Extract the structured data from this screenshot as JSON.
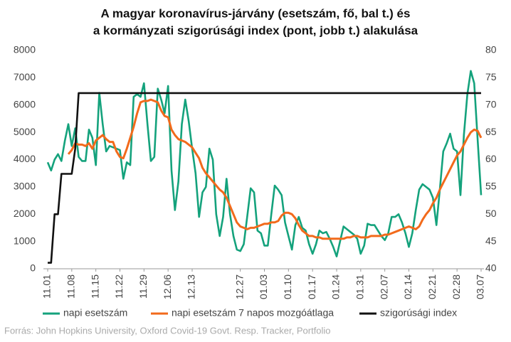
{
  "chart_data": {
    "type": "line",
    "title": [
      "A magyar koronavírus-járvány (esetszám, fő, bal t.) és",
      "a kormányzati szigorúsági index (pont, jobb t.) alakulása"
    ],
    "source": "Forrás: John Hopkins University, Oxford Covid-19 Govt. Resp. Tracker, Portfolio",
    "categories": [
      "11.01",
      null,
      null,
      null,
      null,
      null,
      null,
      "11.08",
      null,
      null,
      null,
      null,
      null,
      null,
      "11.15",
      null,
      null,
      null,
      null,
      null,
      null,
      "11.22",
      null,
      null,
      null,
      null,
      null,
      null,
      "11.29",
      null,
      null,
      null,
      null,
      null,
      null,
      "12.06",
      null,
      null,
      null,
      null,
      null,
      null,
      "12.13",
      null,
      null,
      null,
      null,
      null,
      null,
      null,
      null,
      null,
      null,
      null,
      null,
      null,
      "12.27",
      null,
      null,
      null,
      null,
      null,
      null,
      "01.03",
      null,
      null,
      null,
      null,
      null,
      null,
      "01.10",
      null,
      null,
      null,
      null,
      null,
      null,
      "01.17",
      null,
      null,
      null,
      null,
      null,
      null,
      "01.24",
      null,
      null,
      null,
      null,
      null,
      null,
      "01.31",
      null,
      null,
      null,
      null,
      null,
      null,
      "02.07",
      null,
      null,
      null,
      null,
      null,
      null,
      "02.14",
      null,
      null,
      null,
      null,
      null,
      null,
      "02.21",
      null,
      null,
      null,
      null,
      null,
      null,
      "02.28",
      null,
      null,
      null,
      null,
      null,
      null,
      "03.07"
    ],
    "series": [
      {
        "name": "napi esetszám",
        "color": "#14a27c",
        "values": [
          3900,
          3600,
          4000,
          4200,
          3950,
          4700,
          5300,
          4500,
          5150,
          4100,
          3950,
          3950,
          5100,
          4800,
          3800,
          6450,
          5300,
          4300,
          4500,
          4450,
          4400,
          4350,
          3300,
          3900,
          3800,
          6300,
          6400,
          6300,
          6800,
          5300,
          3950,
          4100,
          6600,
          6200,
          5700,
          6700,
          3600,
          2150,
          3200,
          5300,
          6200,
          5400,
          4400,
          3500,
          1900,
          2800,
          3000,
          4400,
          4000,
          2000,
          1200,
          1900,
          3300,
          2000,
          1200,
          700,
          650,
          900,
          1900,
          2950,
          2800,
          1400,
          1300,
          850,
          850,
          2000,
          3050,
          2900,
          2700,
          1700,
          1200,
          700,
          1600,
          1900,
          1500,
          1400,
          900,
          550,
          900,
          1400,
          1300,
          1350,
          1100,
          800,
          450,
          1000,
          1550,
          1450,
          1350,
          1250,
          1100,
          550,
          850,
          1650,
          1600,
          1600,
          1400,
          1200,
          1050,
          1300,
          1900,
          1900,
          2000,
          1700,
          1300,
          800,
          1300,
          2150,
          2900,
          3100,
          3000,
          2900,
          2600,
          1600,
          2900,
          4300,
          4600,
          4950,
          4400,
          4300,
          2700,
          4900,
          6400,
          7250,
          6800,
          4700,
          2700
        ]
      },
      {
        "name": "napi esetszám 7 napos mozgóátlaga",
        "color": "#f26a1b",
        "values": [
          null,
          null,
          null,
          null,
          null,
          null,
          4200,
          4350,
          4600,
          4550,
          4550,
          4500,
          4600,
          4400,
          4700,
          4800,
          4900,
          4750,
          4650,
          4650,
          4300,
          4100,
          4050,
          4400,
          4800,
          5200,
          5700,
          6100,
          6150,
          6150,
          6200,
          6150,
          6100,
          5800,
          5600,
          5550,
          5100,
          4900,
          4750,
          4700,
          4650,
          4550,
          4450,
          4250,
          4050,
          3700,
          3500,
          3350,
          3200,
          3050,
          2900,
          2800,
          2600,
          2300,
          2000,
          1700,
          1550,
          1500,
          1450,
          1500,
          1500,
          1550,
          1600,
          1650,
          1650,
          1700,
          1700,
          1750,
          1950,
          2050,
          2050,
          2000,
          1850,
          1600,
          1400,
          1300,
          1200,
          1200,
          1150,
          1150,
          1100,
          1100,
          1100,
          1100,
          1100,
          1100,
          1100,
          1150,
          1150,
          1200,
          1200,
          1150,
          1150,
          1150,
          1200,
          1200,
          1200,
          1200,
          1250,
          1250,
          1300,
          1350,
          1400,
          1450,
          1500,
          1550,
          1500,
          1450,
          1550,
          1800,
          2000,
          2150,
          2400,
          2600,
          2900,
          3150,
          3400,
          3650,
          3900,
          4150,
          4300,
          4550,
          4800,
          5000,
          5100,
          5050,
          4800
        ]
      },
      {
        "name": "szigorúsági index",
        "color": "#111111",
        "axis": "y2",
        "values": [
          41.1,
          41.1,
          50,
          50,
          57.4,
          57.4,
          57.4,
          57.4,
          62,
          72.2,
          72.2,
          72.2,
          72.2,
          72.2,
          72.2,
          72.2,
          72.2,
          72.2,
          72.2,
          72.2,
          72.2,
          72.2,
          72.2,
          72.2,
          72.2,
          72.2,
          72.2,
          72.2,
          72.2,
          72.2,
          72.2,
          72.2,
          72.2,
          72.2,
          72.2,
          72.2,
          72.2,
          72.2,
          72.2,
          72.2,
          72.2,
          72.2,
          72.2,
          72.2,
          72.2,
          72.2,
          72.2,
          72.2,
          72.2,
          72.2,
          72.2,
          72.2,
          72.2,
          72.2,
          72.2,
          72.2,
          72.2,
          72.2,
          72.2,
          72.2,
          72.2,
          72.2,
          72.2,
          72.2,
          72.2,
          72.2,
          72.2,
          72.2,
          72.2,
          72.2,
          72.2,
          72.2,
          72.2,
          72.2,
          72.2,
          72.2,
          72.2,
          72.2,
          72.2,
          72.2,
          72.2,
          72.2,
          72.2,
          72.2,
          72.2,
          72.2,
          72.2,
          72.2,
          72.2,
          72.2,
          72.2,
          72.2,
          72.2,
          72.2,
          72.2,
          72.2,
          72.2,
          72.2,
          72.2,
          72.2,
          72.2,
          72.2,
          72.2,
          72.2,
          72.2,
          72.2,
          72.2,
          72.2,
          72.2,
          72.2,
          72.2,
          72.2,
          72.2,
          72.2,
          72.2,
          72.2,
          72.2,
          72.2,
          72.2,
          72.2,
          72.2,
          72.2,
          72.2,
          72.2,
          72.2,
          72.2,
          72.2
        ]
      }
    ],
    "ylim": [
      0,
      8000
    ],
    "yticks": [
      0,
      1000,
      2000,
      3000,
      4000,
      5000,
      6000,
      7000,
      8000
    ],
    "y2lim": [
      40,
      80
    ],
    "y2ticks": [
      40,
      45,
      50,
      55,
      60,
      65,
      70,
      75,
      80
    ],
    "grid": false,
    "legend": "bottom"
  }
}
